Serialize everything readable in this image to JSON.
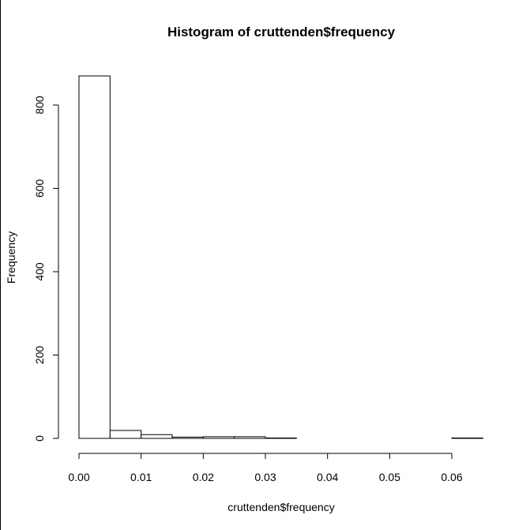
{
  "chart_data": {
    "type": "bar",
    "title": "Histogram of cruttenden$frequency",
    "xlabel": "cruttenden$frequency",
    "ylabel": "Frequency",
    "bin_width": 0.005,
    "bins": [
      {
        "start": 0.0,
        "end": 0.005,
        "count": 870
      },
      {
        "start": 0.005,
        "end": 0.01,
        "count": 19
      },
      {
        "start": 0.01,
        "end": 0.015,
        "count": 9
      },
      {
        "start": 0.015,
        "end": 0.02,
        "count": 3
      },
      {
        "start": 0.02,
        "end": 0.025,
        "count": 4
      },
      {
        "start": 0.025,
        "end": 0.03,
        "count": 4
      },
      {
        "start": 0.03,
        "end": 0.035,
        "count": 1
      },
      {
        "start": 0.035,
        "end": 0.04,
        "count": 0
      },
      {
        "start": 0.04,
        "end": 0.045,
        "count": 0
      },
      {
        "start": 0.045,
        "end": 0.05,
        "count": 0
      },
      {
        "start": 0.05,
        "end": 0.055,
        "count": 0
      },
      {
        "start": 0.055,
        "end": 0.06,
        "count": 0
      },
      {
        "start": 0.06,
        "end": 0.065,
        "count": 1
      }
    ],
    "xlim": [
      0.0,
      0.065
    ],
    "ylim": [
      0,
      870
    ],
    "x_ticks": [
      0.0,
      0.01,
      0.02,
      0.03,
      0.04,
      0.05,
      0.06
    ],
    "x_tick_labels": [
      "0.00",
      "0.01",
      "0.02",
      "0.03",
      "0.04",
      "0.05",
      "0.06"
    ],
    "y_ticks": [
      0,
      200,
      400,
      600,
      800
    ],
    "y_tick_labels": [
      "0",
      "200",
      "400",
      "600",
      "800"
    ],
    "grid": false,
    "colors": {
      "bar_fill": "#ffffff",
      "bar_stroke": "#000000"
    }
  }
}
